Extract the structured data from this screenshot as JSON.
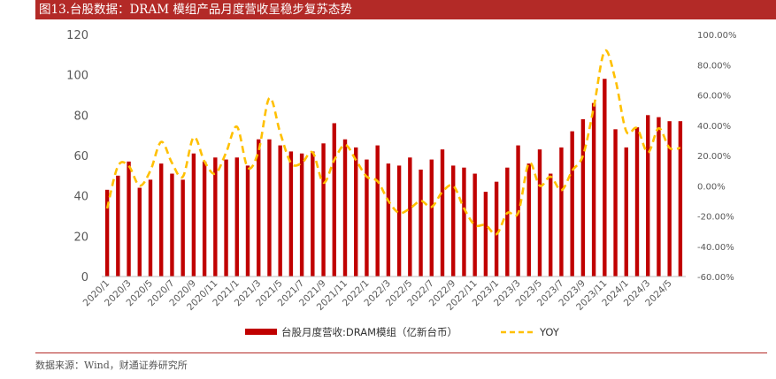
{
  "title": "图13.台股数据：DRAM 模组产品月度营收呈稳步复苏态势",
  "source": "数据来源：Wind，财通证券研究所",
  "chart_data": {
    "type": "bar+line",
    "categories": [
      "2020/1",
      "2020/2",
      "2020/3",
      "2020/4",
      "2020/5",
      "2020/6",
      "2020/7",
      "2020/8",
      "2020/9",
      "2020/10",
      "2020/11",
      "2020/12",
      "2021/1",
      "2021/2",
      "2021/3",
      "2021/4",
      "2021/5",
      "2021/6",
      "2021/7",
      "2021/8",
      "2021/9",
      "2021/10",
      "2021/11",
      "2021/12",
      "2022/1",
      "2022/2",
      "2022/3",
      "2022/4",
      "2022/5",
      "2022/6",
      "2022/7",
      "2022/8",
      "2022/9",
      "2022/10",
      "2022/11",
      "2022/12",
      "2023/1",
      "2023/2",
      "2023/3",
      "2023/4",
      "2023/5",
      "2023/6",
      "2023/7",
      "2023/8",
      "2023/9",
      "2023/10",
      "2023/11",
      "2023/12",
      "2024/1",
      "2024/2",
      "2024/3",
      "2024/4",
      "2024/5",
      "2024/6"
    ],
    "tick_labels": [
      "2020/1",
      "2020/3",
      "2020/5",
      "2020/7",
      "2020/9",
      "2020/11",
      "2021/1",
      "2021/3",
      "2021/5",
      "2021/7",
      "2021/9",
      "2021/11",
      "2022/1",
      "2022/3",
      "2022/5",
      "2022/7",
      "2022/9",
      "2022/11",
      "2023/1",
      "2023/3",
      "2023/5",
      "2023/7",
      "2023/9",
      "2023/11",
      "2024/1",
      "2024/3",
      "2024/5"
    ],
    "series": [
      {
        "name": "台股月度营收:DRAM模组（亿新台币）",
        "type": "bar",
        "axis": "left",
        "color": "#c00000",
        "values": [
          43,
          50,
          57,
          44,
          48,
          56,
          51,
          48,
          61,
          57,
          59,
          58,
          59,
          55,
          68,
          68,
          65,
          62,
          61,
          62,
          66,
          76,
          68,
          64,
          58,
          65,
          56,
          55,
          59,
          53,
          58,
          63,
          55,
          54,
          51,
          42,
          47,
          54,
          65,
          56,
          63,
          51,
          64,
          72,
          78,
          86,
          98,
          73,
          64,
          74,
          80,
          79,
          77,
          77
        ]
      },
      {
        "name": "YOY",
        "type": "line",
        "axis": "right",
        "color": "#ffc000",
        "dashed": true,
        "values": [
          -0.15,
          0.13,
          0.13,
          0.0,
          0.1,
          0.29,
          0.15,
          0.06,
          0.32,
          0.16,
          0.08,
          0.22,
          0.39,
          0.12,
          0.23,
          0.58,
          0.35,
          0.15,
          0.15,
          0.22,
          0.02,
          0.17,
          0.27,
          0.17,
          0.06,
          0.03,
          -0.1,
          -0.18,
          -0.15,
          -0.1,
          -0.14,
          -0.04,
          0.0,
          -0.15,
          -0.26,
          -0.26,
          -0.32,
          -0.18,
          -0.18,
          0.15,
          0.0,
          0.06,
          -0.03,
          0.1,
          0.2,
          0.52,
          0.89,
          0.7,
          0.36,
          0.38,
          0.22,
          0.38,
          0.25,
          0.25
        ]
      }
    ],
    "y_left": {
      "min": 0,
      "max": 120,
      "ticks": [
        "0",
        "20",
        "40",
        "60",
        "80",
        "100",
        "120"
      ]
    },
    "y_right": {
      "min": -0.6,
      "max": 1.0,
      "ticks": [
        "-60.00%",
        "-40.00%",
        "-20.00%",
        "0.00%",
        "20.00%",
        "40.00%",
        "60.00%",
        "80.00%",
        "100.00%"
      ]
    },
    "legend": {
      "position": "bottom",
      "bar_label": "台股月度营收:DRAM模组（亿新台币）",
      "line_label": "YOY"
    },
    "grid": false
  }
}
